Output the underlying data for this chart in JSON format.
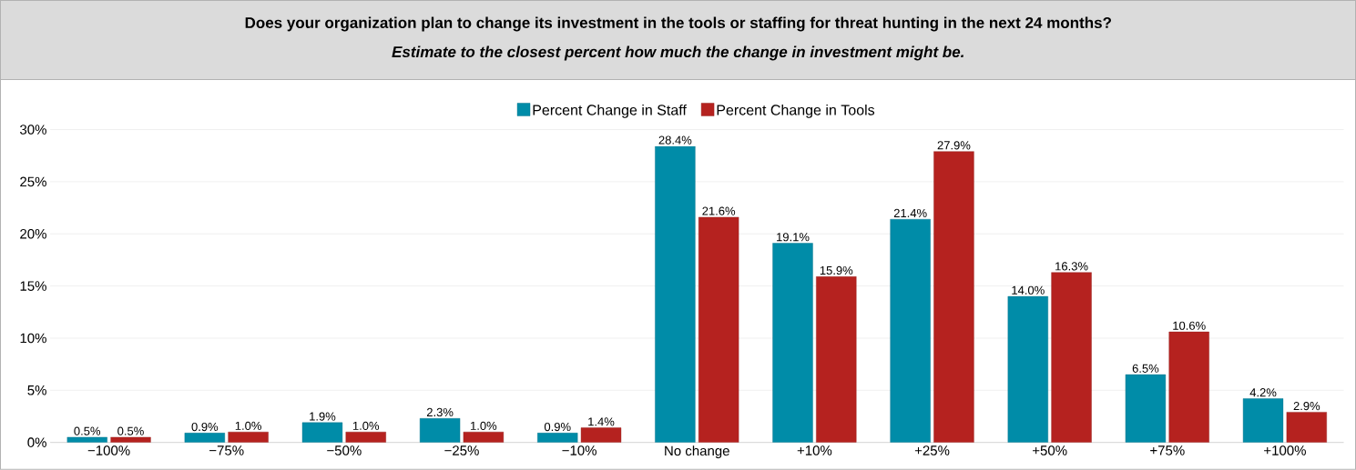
{
  "chart_data": {
    "type": "bar",
    "title": "Does your organization plan to change its investment in the tools or staffing for threat hunting in the next 24 months?",
    "subtitle": "Estimate to the closest percent how much the change in investment might be.",
    "categories": [
      "−100%",
      "−75%",
      "−50%",
      "−25%",
      "−10%",
      "No change",
      "+10%",
      "+25%",
      "+50%",
      "+75%",
      "+100%"
    ],
    "series": [
      {
        "name": "Percent Change in Staff",
        "color": "#008ca8",
        "values": [
          0.5,
          0.9,
          1.9,
          2.3,
          0.9,
          28.4,
          19.1,
          21.4,
          14.0,
          6.5,
          4.2
        ],
        "value_labels": [
          "0.5%",
          "0.9%",
          "1.9%",
          "2.3%",
          "0.9%",
          "28.4%",
          "19.1%",
          "21.4%",
          "14.0%",
          "6.5%",
          "4.2%"
        ]
      },
      {
        "name": "Percent Change in Tools",
        "color": "#b5221f",
        "values": [
          0.5,
          1.0,
          1.0,
          1.0,
          1.4,
          21.6,
          15.9,
          27.9,
          16.3,
          10.6,
          2.9
        ],
        "value_labels": [
          "0.5%",
          "1.0%",
          "1.0%",
          "1.0%",
          "1.4%",
          "21.6%",
          "15.9%",
          "27.9%",
          "16.3%",
          "10.6%",
          "2.9%"
        ]
      }
    ],
    "ylim": [
      0,
      30
    ],
    "yticks": [
      {
        "value": 0,
        "label": "0%"
      },
      {
        "value": 5,
        "label": "5%"
      },
      {
        "value": 10,
        "label": "10%"
      },
      {
        "value": 15,
        "label": "15%"
      },
      {
        "value": 20,
        "label": "20%"
      },
      {
        "value": 25,
        "label": "25%"
      },
      {
        "value": 30,
        "label": "30%"
      }
    ],
    "grid": "y",
    "legend": "top"
  }
}
